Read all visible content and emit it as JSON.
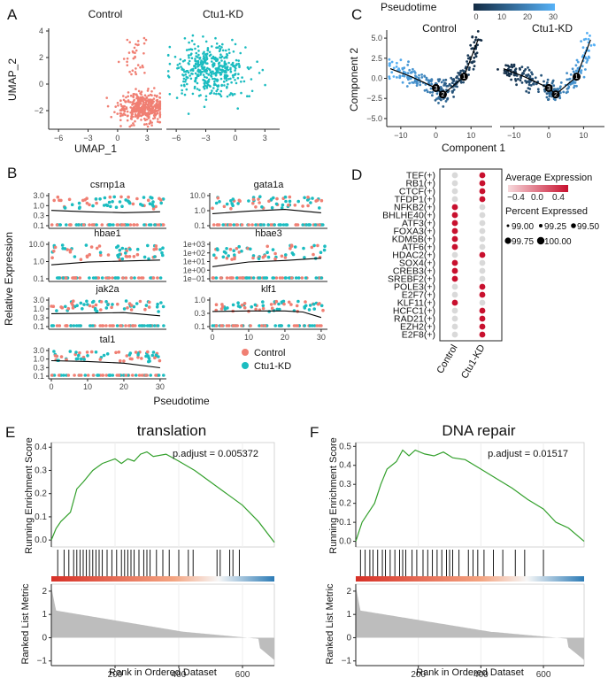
{
  "panels": {
    "A": {
      "letter": "A",
      "facets": [
        "Control",
        "Ctu1-KD"
      ],
      "xlabel": "UMAP_1",
      "ylabel": "UMAP_2",
      "xticks": [
        "−6",
        "−3",
        "0",
        "3"
      ],
      "yticks": [
        "4",
        "2",
        "0",
        "−2"
      ]
    },
    "B": {
      "letter": "B",
      "xlabel": "Pseudotime",
      "ylabel": "Relative Expression",
      "genes": [
        "csrnp1a",
        "gata1a",
        "hbae1",
        "hbae3",
        "jak2a",
        "klf1",
        "tal1"
      ],
      "yticks_default": [
        "3.0",
        "1.0",
        "0.3",
        "0.1"
      ],
      "yticks_gata1a": [
        "10.0",
        "1.0",
        "0.1"
      ],
      "yticks_hbae1": [
        "10.0",
        "1.0",
        "0.1"
      ],
      "yticks_hbae3": [
        "1e+03",
        "1e+02",
        "1e+01",
        "1e+00",
        "1e−01"
      ],
      "yticks_klf1": [
        "1.0",
        "0.3",
        "0.1"
      ],
      "xticks": [
        "0",
        "10",
        "20",
        "30"
      ],
      "legend": [
        {
          "label": "Control",
          "color": "#f07f73"
        },
        {
          "label": "Ctu1-KD",
          "color": "#1bbcc0"
        }
      ]
    },
    "C": {
      "letter": "C",
      "legend_title": "Pseudotime",
      "legend_ticks": [
        "0",
        "10",
        "20",
        "30"
      ],
      "facets": [
        "Control",
        "Ctu1-KD"
      ],
      "xlabel": "Component 1",
      "ylabel": "Component 2",
      "xticks": [
        "−10",
        "0",
        "10"
      ],
      "yticks": [
        "5.0",
        "2.5",
        "0.0",
        "−2.5",
        "−5.0"
      ]
    },
    "D": {
      "letter": "D",
      "tfs": [
        "TEF(+)",
        "RB1(+)",
        "CTCF(+)",
        "TFDP1(+)",
        "NFKB2(+)",
        "BHLHE40(+)",
        "ATF3(+)",
        "FOXA3(+)",
        "KDM5B(+)",
        "ATF6(+)",
        "HDAC2(+)",
        "SOX4(+)",
        "CREB3(+)",
        "SREBF2(+)",
        "POLE3(+)",
        "E2F7(+)",
        "KLF11(+)",
        "HCFC1(+)",
        "RAD21(+)",
        "EZH2(+)",
        "E2F8(+)"
      ],
      "control_high": [
        false,
        false,
        false,
        false,
        true,
        true,
        true,
        true,
        true,
        true,
        false,
        true,
        true,
        true,
        false,
        false,
        true,
        false,
        false,
        false,
        false
      ],
      "kd_high": [
        true,
        true,
        true,
        true,
        false,
        false,
        false,
        false,
        false,
        false,
        true,
        false,
        false,
        false,
        true,
        true,
        false,
        true,
        true,
        true,
        true
      ],
      "groups": [
        "Control",
        "Ctu1-KD"
      ],
      "legend_avg_title": "Average Expression",
      "legend_avg_ticks": [
        "−0.4",
        "0.0",
        "0.4"
      ],
      "legend_pct_title": "Percent Expressed",
      "legend_pct_items": [
        "99.00",
        "99.25",
        "99.50",
        "99.75",
        "100.00"
      ]
    },
    "E": {
      "letter": "E",
      "title": "translation",
      "padjust": "p.adjust = 0.005372",
      "ylabel_top": "Running Enrichment Score",
      "ylabel_bottom": "Ranked List Metric",
      "xlabel": "Rank in Ordered Dataset",
      "yticks_top": [
        "0.4",
        "0.3",
        "0.2",
        "0.1",
        "0.0"
      ],
      "yticks_bottom": [
        "2",
        "1",
        "0",
        "−1"
      ],
      "xticks": [
        "200",
        "400",
        "600"
      ]
    },
    "F": {
      "letter": "F",
      "title": "DNA repair",
      "padjust": "p.adjust = 0.01517",
      "ylabel_top": "Running Enrichment Score",
      "ylabel_bottom": "Ranked List Metric",
      "xlabel": "Rank in Ordered Dataset",
      "yticks_top": [
        "0.5",
        "0.4",
        "0.3",
        "0.2",
        "0.1",
        "0.0"
      ],
      "yticks_bottom": [
        "2",
        "1",
        "0",
        "−1"
      ],
      "xticks": [
        "200",
        "400",
        "600"
      ]
    }
  },
  "chart_data": [
    {
      "type": "scatter",
      "panel": "A",
      "facets": [
        "Control",
        "Ctu1-KD"
      ],
      "xlim": [
        -7,
        4.5
      ],
      "ylim": [
        -3.4,
        4.2
      ],
      "series": [
        {
          "name": "Control",
          "color": "#f07f73",
          "center": [
            2.5,
            -1.8
          ],
          "spread": [
            1.5,
            0.9
          ]
        },
        {
          "name": "Ctu1-KD",
          "color": "#1bbcc0",
          "center": [
            -2.5,
            1.0
          ],
          "spread": [
            2.2,
            1.2
          ]
        }
      ]
    },
    {
      "type": "scatter",
      "panel": "B",
      "x_range": [
        0,
        30
      ],
      "log_y": true,
      "genes": [
        {
          "gene": "csrnp1a",
          "trend": [
            [
              0,
              1.1
            ],
            [
              10,
              0.9
            ],
            [
              20,
              0.8
            ],
            [
              30,
              0.9
            ]
          ]
        },
        {
          "gene": "gata1a",
          "trend": [
            [
              0,
              0.7
            ],
            [
              10,
              1.0
            ],
            [
              20,
              1.3
            ],
            [
              30,
              0.8
            ]
          ]
        },
        {
          "gene": "hbae1",
          "trend": [
            [
              0,
              1.0
            ],
            [
              10,
              1.4
            ],
            [
              20,
              1.6
            ],
            [
              30,
              1.8
            ]
          ]
        },
        {
          "gene": "hbae3",
          "trend": [
            [
              0,
              200
            ],
            [
              10,
              400
            ],
            [
              20,
              500
            ],
            [
              30,
              700
            ]
          ]
        },
        {
          "gene": "jak2a",
          "trend": [
            [
              0,
              0.5
            ],
            [
              10,
              0.55
            ],
            [
              20,
              0.6
            ],
            [
              30,
              0.35
            ]
          ]
        },
        {
          "gene": "klf1",
          "trend": [
            [
              0,
              0.9
            ],
            [
              10,
              1.0
            ],
            [
              20,
              1.0
            ],
            [
              25,
              0.8
            ],
            [
              30,
              0.25
            ]
          ]
        },
        {
          "gene": "tal1",
          "trend": [
            [
              0,
              0.55
            ],
            [
              10,
              0.45
            ],
            [
              20,
              0.3
            ],
            [
              30,
              0.1
            ]
          ]
        }
      ]
    },
    {
      "type": "scatter",
      "panel": "C",
      "facets": [
        "Control",
        "Ctu1-KD"
      ],
      "xlim": [
        -14,
        16
      ],
      "ylim": [
        -6,
        6
      ],
      "trajectory": [
        [
          -13,
          1.2
        ],
        [
          -7,
          0.2
        ],
        [
          0,
          -1.2
        ],
        [
          2,
          -2
        ],
        [
          8,
          0.2
        ],
        [
          12,
          4.8
        ]
      ],
      "branch_points": [
        "1",
        "2",
        "3"
      ],
      "color_scale": {
        "min": 0,
        "max": 30,
        "low": "#0d2a4a",
        "high": "#56b1f7"
      }
    },
    {
      "type": "dot",
      "panel": "D",
      "description": "TF regulon activity dot plot; red = high average expression, grey = low"
    },
    {
      "type": "line",
      "panel": "E",
      "xlim": [
        0,
        700
      ],
      "ylim_top": [
        -0.03,
        0.42
      ],
      "running_es": [
        [
          0,
          0.0
        ],
        [
          15,
          0.05
        ],
        [
          30,
          0.08
        ],
        [
          60,
          0.12
        ],
        [
          80,
          0.22
        ],
        [
          100,
          0.25
        ],
        [
          130,
          0.3
        ],
        [
          160,
          0.33
        ],
        [
          200,
          0.35
        ],
        [
          220,
          0.33
        ],
        [
          240,
          0.35
        ],
        [
          260,
          0.34
        ],
        [
          280,
          0.37
        ],
        [
          300,
          0.38
        ],
        [
          320,
          0.36
        ],
        [
          360,
          0.37
        ],
        [
          400,
          0.34
        ],
        [
          450,
          0.3
        ],
        [
          500,
          0.25
        ],
        [
          550,
          0.2
        ],
        [
          600,
          0.15
        ],
        [
          650,
          0.08
        ],
        [
          700,
          -0.01
        ]
      ],
      "hits": [
        20,
        40,
        55,
        70,
        80,
        90,
        100,
        110,
        120,
        130,
        140,
        150,
        160,
        175,
        190,
        205,
        220,
        230,
        240,
        250,
        260,
        275,
        290,
        300,
        310,
        330,
        350,
        370,
        400,
        430,
        445,
        520,
        530,
        560,
        570,
        590
      ],
      "ylim_bottom": [
        -1.2,
        2.3
      ]
    },
    {
      "type": "line",
      "panel": "F",
      "xlim": [
        0,
        730
      ],
      "ylim_top": [
        -0.03,
        0.52
      ],
      "running_es": [
        [
          0,
          0.0
        ],
        [
          20,
          0.1
        ],
        [
          40,
          0.15
        ],
        [
          60,
          0.2
        ],
        [
          80,
          0.3
        ],
        [
          100,
          0.38
        ],
        [
          130,
          0.42
        ],
        [
          150,
          0.48
        ],
        [
          170,
          0.45
        ],
        [
          190,
          0.48
        ],
        [
          220,
          0.46
        ],
        [
          250,
          0.45
        ],
        [
          280,
          0.47
        ],
        [
          310,
          0.44
        ],
        [
          350,
          0.43
        ],
        [
          400,
          0.38
        ],
        [
          450,
          0.33
        ],
        [
          500,
          0.28
        ],
        [
          550,
          0.22
        ],
        [
          600,
          0.17
        ],
        [
          640,
          0.1
        ],
        [
          680,
          0.07
        ],
        [
          730,
          0.0
        ]
      ],
      "hits": [
        15,
        30,
        45,
        55,
        70,
        85,
        95,
        110,
        125,
        140,
        150,
        160,
        180,
        195,
        215,
        230,
        245,
        260,
        275,
        290,
        300,
        310,
        330,
        360,
        375,
        390,
        410,
        440,
        470,
        510,
        540,
        600
      ],
      "ylim_bottom": [
        -1.2,
        2.3
      ]
    }
  ]
}
